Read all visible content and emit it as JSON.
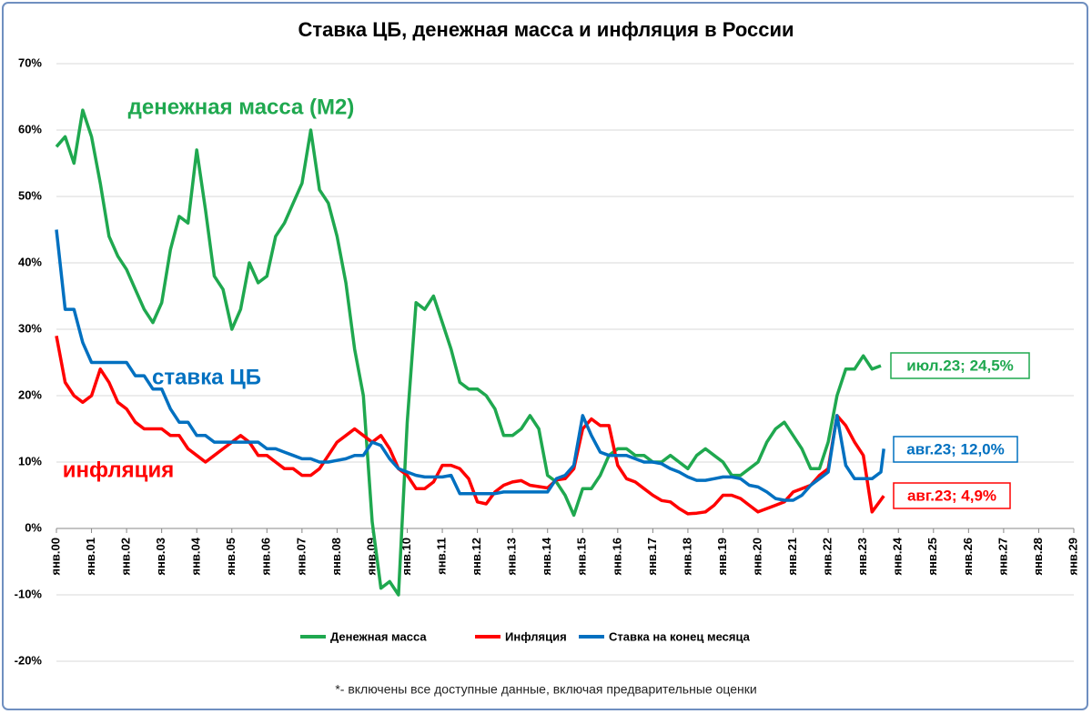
{
  "chart_data": {
    "type": "line",
    "title": "Ставка ЦБ, денежная масса и инфляция в России",
    "footnote": "*- включены все доступные данные, включая предварительные оценки",
    "x": [
      2000,
      2000.25,
      2000.5,
      2000.75,
      2001,
      2001.25,
      2001.5,
      2001.75,
      2002,
      2002.25,
      2002.5,
      2002.75,
      2003,
      2003.25,
      2003.5,
      2003.75,
      2004,
      2004.25,
      2004.5,
      2004.75,
      2005,
      2005.25,
      2005.5,
      2005.75,
      2006,
      2006.25,
      2006.5,
      2006.75,
      2007,
      2007.25,
      2007.5,
      2007.75,
      2008,
      2008.25,
      2008.5,
      2008.75,
      2009,
      2009.25,
      2009.5,
      2009.75,
      2010,
      2010.25,
      2010.5,
      2010.75,
      2011,
      2011.25,
      2011.5,
      2011.75,
      2012,
      2012.25,
      2012.5,
      2012.75,
      2013,
      2013.25,
      2013.5,
      2013.75,
      2014,
      2014.25,
      2014.5,
      2014.75,
      2015,
      2015.25,
      2015.5,
      2015.75,
      2016,
      2016.25,
      2016.5,
      2016.75,
      2017,
      2017.25,
      2017.5,
      2017.75,
      2018,
      2018.25,
      2018.5,
      2018.75,
      2019,
      2019.25,
      2019.5,
      2019.75,
      2020,
      2020.25,
      2020.5,
      2020.75,
      2021,
      2021.25,
      2021.5,
      2021.75,
      2022,
      2022.25,
      2022.5,
      2022.75,
      2023,
      2023.25,
      2023.5,
      2023.583
    ],
    "series": [
      {
        "name": "Денежная масса",
        "color": "#1fa84f",
        "values": [
          57.5,
          59,
          55,
          63,
          59,
          52,
          44,
          41,
          39,
          36,
          33,
          31,
          34,
          42,
          47,
          46,
          57,
          48,
          38,
          36,
          30,
          33,
          40,
          37,
          38,
          44,
          46,
          49,
          52,
          60,
          51,
          49,
          44,
          37,
          27,
          20,
          1,
          -9,
          -8,
          -10,
          16,
          34,
          33,
          35,
          31,
          27,
          22,
          21,
          21,
          20,
          18,
          14,
          14,
          15,
          17,
          15,
          8,
          7,
          5,
          2,
          6,
          6,
          8,
          11,
          12,
          12,
          11,
          11,
          10,
          10,
          11,
          10,
          9,
          11,
          12,
          11,
          10,
          8,
          8,
          9,
          10,
          13,
          15,
          16,
          14,
          12,
          9,
          9,
          13,
          20,
          24,
          24,
          26,
          24,
          24.5,
          null
        ]
      },
      {
        "name": "Инфляция",
        "color": "#ff0000",
        "values": [
          29,
          22,
          20,
          19,
          20,
          24,
          22,
          19,
          18,
          16,
          15,
          15,
          15,
          14,
          14,
          12,
          11,
          10,
          11,
          12,
          13,
          14,
          13,
          11,
          11,
          10,
          9,
          9,
          8,
          8,
          9,
          11,
          13,
          14,
          15,
          14,
          13,
          14,
          12,
          9,
          8,
          6,
          6,
          7,
          9.5,
          9.5,
          9,
          7.5,
          4,
          3.7,
          5.5,
          6.5,
          7,
          7.2,
          6.5,
          6.3,
          6.1,
          7.3,
          7.5,
          9,
          15,
          16.5,
          15.5,
          15.5,
          9.5,
          7.5,
          7,
          6,
          5,
          4.2,
          4,
          3,
          2.2,
          2.3,
          2.5,
          3.5,
          5,
          5,
          4.5,
          3.5,
          2.5,
          3,
          3.5,
          4,
          5.5,
          6,
          6.5,
          8,
          9,
          17,
          15.5,
          13,
          11,
          2.5,
          4.3,
          4.9
        ]
      },
      {
        "name": "Ставка на конец месяца",
        "color": "#0070c0",
        "values": [
          45,
          33,
          33,
          28,
          25,
          25,
          25,
          25,
          25,
          23,
          23,
          21,
          21,
          18,
          16,
          16,
          14,
          14,
          13,
          13,
          13,
          13,
          13,
          13,
          12,
          12,
          11.5,
          11,
          10.5,
          10.5,
          10,
          10,
          10.25,
          10.5,
          11,
          11,
          13,
          12.5,
          10.5,
          9,
          8.5,
          8,
          7.75,
          7.75,
          7.75,
          8,
          5.25,
          5.25,
          5.25,
          5.25,
          5.25,
          5.5,
          5.5,
          5.5,
          5.5,
          5.5,
          5.5,
          7.5,
          8,
          9.5,
          17,
          14,
          11.5,
          11,
          11,
          11,
          10.5,
          10,
          10,
          9.75,
          9,
          8.5,
          7.75,
          7.25,
          7.25,
          7.5,
          7.75,
          7.75,
          7.5,
          6.5,
          6.25,
          5.5,
          4.5,
          4.25,
          4.25,
          5,
          6.5,
          7.5,
          8.5,
          17,
          9.5,
          7.5,
          7.5,
          7.5,
          8.5,
          12
        ]
      }
    ],
    "annotations": [
      {
        "text": "денежная масса (М2)",
        "color": "#1fa84f"
      },
      {
        "text": "ставка ЦБ",
        "color": "#0070c0"
      },
      {
        "text": "инфляция",
        "color": "#ff0000"
      },
      {
        "text": "июл.23; 24,5%",
        "color": "#1fa84f"
      },
      {
        "text": "авг.23; 12,0%",
        "color": "#0070c0"
      },
      {
        "text": "авг.23; 4,9%",
        "color": "#ff0000"
      }
    ],
    "xlim": [
      2000,
      2029
    ],
    "xticks": [
      {
        "value": 2000,
        "label": "янв.00"
      },
      {
        "value": 2001,
        "label": "янв.01"
      },
      {
        "value": 2002,
        "label": "янв.02"
      },
      {
        "value": 2003,
        "label": "янв.03"
      },
      {
        "value": 2004,
        "label": "янв.04"
      },
      {
        "value": 2005,
        "label": "янв.05"
      },
      {
        "value": 2006,
        "label": "янв.06"
      },
      {
        "value": 2007,
        "label": "янв.07"
      },
      {
        "value": 2008,
        "label": "янв.08"
      },
      {
        "value": 2009,
        "label": "янв.09"
      },
      {
        "value": 2010,
        "label": "янв.10"
      },
      {
        "value": 2011,
        "label": "янв.11"
      },
      {
        "value": 2012,
        "label": "янв.12"
      },
      {
        "value": 2013,
        "label": "янв.13"
      },
      {
        "value": 2014,
        "label": "янв.14"
      },
      {
        "value": 2015,
        "label": "янв.15"
      },
      {
        "value": 2016,
        "label": "янв.16"
      },
      {
        "value": 2017,
        "label": "янв.17"
      },
      {
        "value": 2018,
        "label": "янв.18"
      },
      {
        "value": 2019,
        "label": "янв.19"
      },
      {
        "value": 2020,
        "label": "янв.20"
      },
      {
        "value": 2021,
        "label": "янв.21"
      },
      {
        "value": 2022,
        "label": "янв.22"
      },
      {
        "value": 2023,
        "label": "янв.23"
      },
      {
        "value": 2024,
        "label": "янв.24"
      },
      {
        "value": 2025,
        "label": "янв.25"
      },
      {
        "value": 2026,
        "label": "янв.26"
      },
      {
        "value": 2027,
        "label": "янв.27"
      },
      {
        "value": 2028,
        "label": "янв.28"
      },
      {
        "value": 2029,
        "label": "янв.29"
      }
    ],
    "ylim": [
      -20,
      70
    ],
    "yticks": [
      {
        "value": -20,
        "label": "-20%"
      },
      {
        "value": -10,
        "label": "-10%"
      },
      {
        "value": 0,
        "label": "0%"
      },
      {
        "value": 10,
        "label": "10%"
      },
      {
        "value": 20,
        "label": "20%"
      },
      {
        "value": 30,
        "label": "30%"
      },
      {
        "value": 40,
        "label": "40%"
      },
      {
        "value": 50,
        "label": "50%"
      },
      {
        "value": 60,
        "label": "60%"
      },
      {
        "value": 70,
        "label": "70%"
      }
    ],
    "grid": true
  }
}
